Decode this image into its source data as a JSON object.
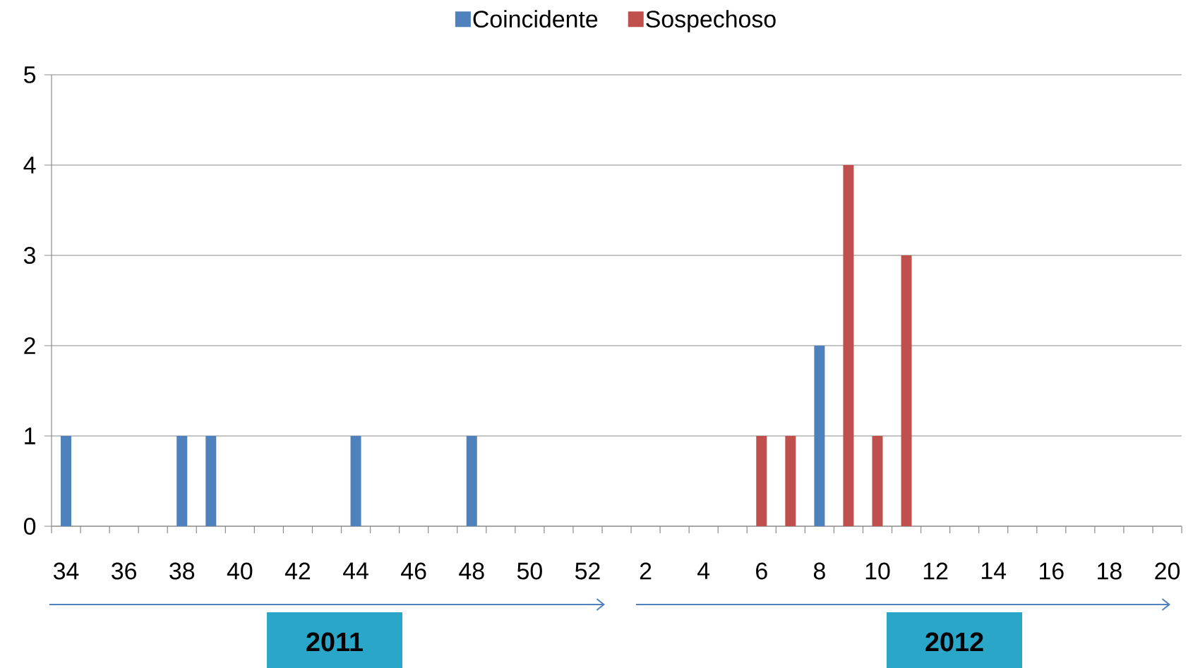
{
  "chart_data": {
    "type": "bar",
    "categories": [
      "34",
      null,
      "36",
      null,
      "38",
      null,
      "40",
      null,
      "42",
      null,
      "44",
      null,
      "46",
      null,
      "48",
      null,
      "50",
      null,
      "52",
      null,
      "2",
      null,
      "4",
      null,
      "6",
      null,
      "8",
      null,
      "10",
      null,
      "12",
      null,
      "14",
      null,
      "16",
      null,
      "18",
      null,
      "20"
    ],
    "series": [
      {
        "name": "Coincidente",
        "color": "#4f81bd",
        "values": [
          1,
          null,
          null,
          null,
          1,
          1,
          null,
          null,
          null,
          null,
          1,
          null,
          null,
          null,
          1,
          null,
          null,
          null,
          null,
          null,
          null,
          null,
          null,
          null,
          null,
          null,
          2,
          null,
          null,
          null,
          null,
          null,
          null,
          null,
          null,
          null,
          null,
          null,
          null
        ]
      },
      {
        "name": "Sospechoso",
        "color": "#c0504d",
        "values": [
          null,
          null,
          null,
          null,
          null,
          null,
          null,
          null,
          null,
          null,
          null,
          null,
          null,
          null,
          null,
          null,
          null,
          null,
          null,
          null,
          null,
          null,
          null,
          null,
          1,
          1,
          null,
          4,
          1,
          3,
          null,
          null,
          null,
          null,
          null,
          null,
          null,
          null,
          null
        ]
      }
    ],
    "ylim": [
      0,
      5
    ],
    "yticks": [
      0,
      1,
      2,
      3,
      4,
      5
    ],
    "grid": "y",
    "legend": "top",
    "annotations": [
      "2011",
      "2012"
    ]
  }
}
